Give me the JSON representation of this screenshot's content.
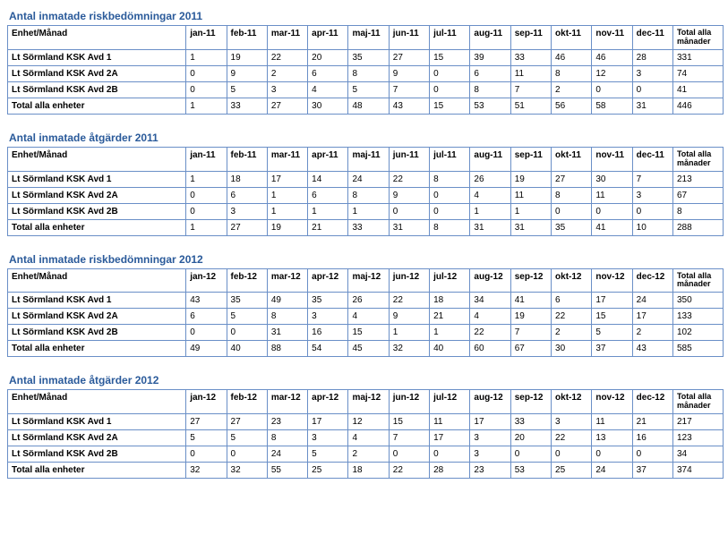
{
  "sections": [
    {
      "title": "Antal inmatade riskbedömningar 2011",
      "unit_header": "Enhet/Månad",
      "total_header": "Total alla månader",
      "months": [
        "jan-11",
        "feb-11",
        "mar-11",
        "apr-11",
        "maj-11",
        "jun-11",
        "jul-11",
        "aug-11",
        "sep-11",
        "okt-11",
        "nov-11",
        "dec-11"
      ],
      "rows": [
        {
          "unit": "Lt Sörmland KSK Avd 1",
          "v": [
            "1",
            "19",
            "22",
            "20",
            "35",
            "27",
            "15",
            "39",
            "33",
            "46",
            "46",
            "28"
          ],
          "t": "331"
        },
        {
          "unit": "Lt Sörmland KSK Avd 2A",
          "v": [
            "0",
            "9",
            "2",
            "6",
            "8",
            "9",
            "0",
            "6",
            "11",
            "8",
            "12",
            "3"
          ],
          "t": "74"
        },
        {
          "unit": "Lt Sörmland KSK Avd 2B",
          "v": [
            "0",
            "5",
            "3",
            "4",
            "5",
            "7",
            "0",
            "8",
            "7",
            "2",
            "0",
            "0"
          ],
          "t": "41"
        },
        {
          "unit": "Total alla enheter",
          "v": [
            "1",
            "33",
            "27",
            "30",
            "48",
            "43",
            "15",
            "53",
            "51",
            "56",
            "58",
            "31"
          ],
          "t": "446"
        }
      ]
    },
    {
      "title": "Antal inmatade åtgärder 2011",
      "unit_header": "Enhet/Månad",
      "total_header": "Total alla månader",
      "months": [
        "jan-11",
        "feb-11",
        "mar-11",
        "apr-11",
        "maj-11",
        "jun-11",
        "jul-11",
        "aug-11",
        "sep-11",
        "okt-11",
        "nov-11",
        "dec-11"
      ],
      "rows": [
        {
          "unit": "Lt Sörmland KSK Avd 1",
          "v": [
            "1",
            "18",
            "17",
            "14",
            "24",
            "22",
            "8",
            "26",
            "19",
            "27",
            "30",
            "7"
          ],
          "t": "213"
        },
        {
          "unit": "Lt Sörmland KSK Avd 2A",
          "v": [
            "0",
            "6",
            "1",
            "6",
            "8",
            "9",
            "0",
            "4",
            "11",
            "8",
            "11",
            "3"
          ],
          "t": "67"
        },
        {
          "unit": "Lt Sörmland KSK Avd 2B",
          "v": [
            "0",
            "3",
            "1",
            "1",
            "1",
            "0",
            "0",
            "1",
            "1",
            "0",
            "0",
            "0"
          ],
          "t": "8"
        },
        {
          "unit": "Total alla enheter",
          "v": [
            "1",
            "27",
            "19",
            "21",
            "33",
            "31",
            "8",
            "31",
            "31",
            "35",
            "41",
            "10"
          ],
          "t": "288"
        }
      ]
    },
    {
      "title": "Antal inmatade riskbedömningar 2012",
      "unit_header": "Enhet/Månad",
      "total_header": "Total alla månader",
      "months": [
        "jan-12",
        "feb-12",
        "mar-12",
        "apr-12",
        "maj-12",
        "jun-12",
        "jul-12",
        "aug-12",
        "sep-12",
        "okt-12",
        "nov-12",
        "dec-12"
      ],
      "rows": [
        {
          "unit": "Lt Sörmland KSK Avd 1",
          "v": [
            "43",
            "35",
            "49",
            "35",
            "26",
            "22",
            "18",
            "34",
            "41",
            "6",
            "17",
            "24"
          ],
          "t": "350"
        },
        {
          "unit": "Lt Sörmland KSK Avd 2A",
          "v": [
            "6",
            "5",
            "8",
            "3",
            "4",
            "9",
            "21",
            "4",
            "19",
            "22",
            "15",
            "17"
          ],
          "t": "133"
        },
        {
          "unit": "Lt Sörmland KSK Avd 2B",
          "v": [
            "0",
            "0",
            "31",
            "16",
            "15",
            "1",
            "1",
            "22",
            "7",
            "2",
            "5",
            "2"
          ],
          "t": "102"
        },
        {
          "unit": "Total alla enheter",
          "v": [
            "49",
            "40",
            "88",
            "54",
            "45",
            "32",
            "40",
            "60",
            "67",
            "30",
            "37",
            "43"
          ],
          "t": "585"
        }
      ]
    },
    {
      "title": "Antal inmatade åtgärder 2012",
      "unit_header": "Enhet/Månad",
      "total_header": "Total alla månader",
      "months": [
        "jan-12",
        "feb-12",
        "mar-12",
        "apr-12",
        "maj-12",
        "jun-12",
        "jul-12",
        "aug-12",
        "sep-12",
        "okt-12",
        "nov-12",
        "dec-12"
      ],
      "rows": [
        {
          "unit": "Lt Sörmland KSK Avd 1",
          "v": [
            "27",
            "27",
            "23",
            "17",
            "12",
            "15",
            "11",
            "17",
            "33",
            "3",
            "11",
            "21"
          ],
          "t": "217"
        },
        {
          "unit": "Lt Sörmland KSK Avd 2A",
          "v": [
            "5",
            "5",
            "8",
            "3",
            "4",
            "7",
            "17",
            "3",
            "20",
            "22",
            "13",
            "16"
          ],
          "t": "123"
        },
        {
          "unit": "Lt Sörmland KSK Avd 2B",
          "v": [
            "0",
            "0",
            "24",
            "5",
            "2",
            "0",
            "0",
            "3",
            "0",
            "0",
            "0",
            "0"
          ],
          "t": "34"
        },
        {
          "unit": "Total alla enheter",
          "v": [
            "32",
            "32",
            "55",
            "25",
            "18",
            "22",
            "28",
            "23",
            "53",
            "25",
            "24",
            "37"
          ],
          "t": "374"
        }
      ]
    }
  ]
}
